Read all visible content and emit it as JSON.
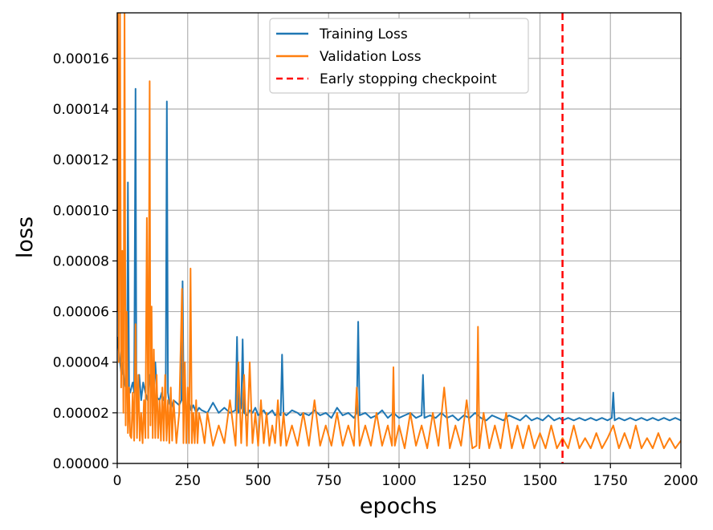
{
  "chart_data": {
    "type": "line",
    "xlabel": "epochs",
    "ylabel": "loss",
    "xlim": [
      0,
      2000
    ],
    "ylim": [
      0,
      0.000178
    ],
    "grid": true,
    "legend_position": "top-center",
    "x_ticks": [
      "0",
      "250",
      "500",
      "750",
      "1000",
      "1250",
      "1500",
      "1750",
      "2000"
    ],
    "y_ticks": [
      "0.00000",
      "0.00002",
      "0.00004",
      "0.00006",
      "0.00008",
      "0.00010",
      "0.00012",
      "0.00014",
      "0.00016"
    ],
    "x_tick_values": [
      0,
      250,
      500,
      750,
      1000,
      1250,
      1500,
      1750,
      2000
    ],
    "y_tick_values": [
      0,
      2e-05,
      4e-05,
      6e-05,
      8e-05,
      0.0001,
      0.00012,
      0.00014,
      0.00016
    ],
    "series": [
      {
        "name": "Training Loss",
        "color": "#1f77b4",
        "style": "solid",
        "x": [
          0,
          5,
          10,
          15,
          20,
          25,
          30,
          35,
          38,
          42,
          46,
          50,
          55,
          60,
          65,
          68,
          72,
          78,
          85,
          92,
          100,
          108,
          115,
          120,
          128,
          135,
          142,
          150,
          158,
          165,
          172,
          176,
          180,
          185,
          192,
          200,
          210,
          220,
          228,
          232,
          236,
          245,
          255,
          262,
          270,
          280,
          290,
          300,
          320,
          340,
          360,
          380,
          400,
          420,
          425,
          430,
          440,
          445,
          450,
          460,
          470,
          480,
          490,
          500,
          510,
          520,
          530,
          540,
          550,
          560,
          570,
          580,
          585,
          590,
          600,
          620,
          640,
          650,
          660,
          680,
          700,
          720,
          740,
          760,
          780,
          800,
          820,
          840,
          850,
          855,
          860,
          880,
          900,
          920,
          940,
          960,
          980,
          1000,
          1020,
          1040,
          1060,
          1080,
          1085,
          1090,
          1110,
          1130,
          1150,
          1170,
          1190,
          1210,
          1230,
          1250,
          1270,
          1290,
          1310,
          1330,
          1350,
          1370,
          1390,
          1410,
          1430,
          1450,
          1470,
          1490,
          1510,
          1530,
          1550,
          1570,
          1580,
          1600,
          1620,
          1640,
          1660,
          1680,
          1700,
          1720,
          1740,
          1755,
          1760,
          1765,
          1780,
          1800,
          1820,
          1840,
          1860,
          1880,
          1900,
          1920,
          1940,
          1960,
          1980,
          2000
        ],
        "y": [
          5e-05,
          4.5e-05,
          4e-05,
          3.5e-05,
          4e-05,
          3.2e-05,
          3e-05,
          3.5e-05,
          0.000111,
          3e-05,
          2.8e-05,
          3e-05,
          3.2e-05,
          2.8e-05,
          0.000148,
          3e-05,
          2.8e-05,
          3.5e-05,
          2.5e-05,
          3.2e-05,
          2.8e-05,
          2.5e-05,
          3.5e-05,
          3e-05,
          2.4e-05,
          4e-05,
          2.6e-05,
          2.5e-05,
          2.8e-05,
          2.5e-05,
          2.6e-05,
          0.000143,
          2.8e-05,
          2.4e-05,
          2.2e-05,
          2.5e-05,
          2.4e-05,
          2.3e-05,
          2.5e-05,
          7.2e-05,
          2.5e-05,
          2.2e-05,
          2.4e-05,
          2.1e-05,
          2.3e-05,
          2e-05,
          2.2e-05,
          2.1e-05,
          2e-05,
          2.4e-05,
          2e-05,
          2.2e-05,
          2e-05,
          2.1e-05,
          5e-05,
          2e-05,
          2.2e-05,
          4.9e-05,
          2e-05,
          1.9e-05,
          2.1e-05,
          2e-05,
          2.2e-05,
          1.9e-05,
          2e-05,
          2.1e-05,
          1.9e-05,
          2e-05,
          2.1e-05,
          1.9e-05,
          2e-05,
          1.9e-05,
          4.3e-05,
          2e-05,
          1.9e-05,
          2.1e-05,
          2e-05,
          1.9e-05,
          2e-05,
          1.9e-05,
          2.1e-05,
          1.9e-05,
          2e-05,
          1.8e-05,
          2.2e-05,
          1.9e-05,
          2e-05,
          1.8e-05,
          2e-05,
          5.6e-05,
          1.9e-05,
          2e-05,
          1.8e-05,
          1.9e-05,
          2.1e-05,
          1.8e-05,
          2e-05,
          1.8e-05,
          1.9e-05,
          2e-05,
          1.8e-05,
          1.9e-05,
          3.5e-05,
          1.8e-05,
          1.9e-05,
          1.8e-05,
          2e-05,
          1.8e-05,
          1.9e-05,
          1.7e-05,
          1.9e-05,
          1.8e-05,
          2e-05,
          1.8e-05,
          1.7e-05,
          1.9e-05,
          1.8e-05,
          1.7e-05,
          1.9e-05,
          1.8e-05,
          1.7e-05,
          1.9e-05,
          1.7e-05,
          1.8e-05,
          1.7e-05,
          1.9e-05,
          1.7e-05,
          1.8e-05,
          1.7e-05,
          1.8e-05,
          1.7e-05,
          1.8e-05,
          1.7e-05,
          1.8e-05,
          1.7e-05,
          1.8e-05,
          1.7e-05,
          1.8e-05,
          2.8e-05,
          1.7e-05,
          1.8e-05,
          1.7e-05,
          1.8e-05,
          1.7e-05,
          1.8e-05,
          1.7e-05,
          1.8e-05,
          1.7e-05,
          1.8e-05,
          1.7e-05,
          1.8e-05,
          1.7e-05
        ]
      },
      {
        "name": "Validation Loss",
        "color": "#ff7f0e",
        "style": "solid",
        "x": [
          0,
          3,
          6,
          10,
          14,
          18,
          22,
          26,
          30,
          34,
          38,
          42,
          46,
          50,
          55,
          60,
          65,
          70,
          75,
          80,
          85,
          90,
          95,
          100,
          105,
          110,
          115,
          118,
          122,
          126,
          130,
          135,
          140,
          145,
          150,
          155,
          160,
          165,
          170,
          175,
          180,
          185,
          190,
          195,
          200,
          210,
          220,
          230,
          235,
          240,
          245,
          250,
          255,
          260,
          265,
          270,
          275,
          280,
          285,
          290,
          300,
          310,
          320,
          340,
          360,
          380,
          400,
          420,
          430,
          440,
          450,
          460,
          470,
          480,
          490,
          500,
          510,
          520,
          530,
          540,
          550,
          560,
          570,
          580,
          590,
          600,
          620,
          640,
          660,
          680,
          700,
          720,
          740,
          760,
          780,
          800,
          820,
          840,
          850,
          860,
          880,
          900,
          920,
          940,
          960,
          975,
          980,
          985,
          1000,
          1020,
          1040,
          1060,
          1080,
          1100,
          1120,
          1140,
          1160,
          1180,
          1200,
          1220,
          1240,
          1260,
          1275,
          1280,
          1285,
          1300,
          1320,
          1340,
          1360,
          1380,
          1400,
          1420,
          1440,
          1460,
          1480,
          1500,
          1520,
          1540,
          1560,
          1580,
          1600,
          1620,
          1640,
          1660,
          1680,
          1700,
          1720,
          1740,
          1760,
          1780,
          1800,
          1820,
          1840,
          1860,
          1880,
          1900,
          1920,
          1940,
          1960,
          1980,
          2000
        ],
        "y": [
          6e-05,
          0.000178,
          4e-05,
          0.000178,
          3e-05,
          8.4e-05,
          2e-05,
          0.000178,
          1.5e-05,
          6e-05,
          1.2e-05,
          3e-05,
          1.1e-05,
          1e-05,
          2.8e-05,
          9e-06,
          5.5e-05,
          1e-05,
          3.5e-05,
          9e-06,
          2e-05,
          8e-06,
          2.5e-05,
          1e-05,
          9.7e-05,
          1e-05,
          0.000151,
          1.5e-05,
          6.2e-05,
          1e-05,
          4.5e-05,
          1e-05,
          3.5e-05,
          1e-05,
          2.5e-05,
          9e-06,
          3e-05,
          9e-06,
          3.5e-05,
          9e-06,
          2.5e-05,
          8e-06,
          3e-05,
          9e-06,
          2.5e-05,
          8e-06,
          2e-05,
          6.9e-05,
          8e-06,
          4e-05,
          8e-06,
          3e-05,
          8e-06,
          7.7e-05,
          8e-06,
          2e-05,
          8e-06,
          2.5e-05,
          8e-06,
          2e-05,
          1.5e-05,
          8e-06,
          2e-05,
          7e-06,
          1.5e-05,
          8e-06,
          2.5e-05,
          7e-06,
          4e-05,
          8e-06,
          3.5e-05,
          7e-06,
          4e-05,
          8e-06,
          2e-05,
          7e-06,
          2.5e-05,
          8e-06,
          2e-05,
          7e-06,
          1.5e-05,
          8e-06,
          2.5e-05,
          7e-06,
          2e-05,
          7e-06,
          1.5e-05,
          7e-06,
          2e-05,
          7e-06,
          2.5e-05,
          7e-06,
          1.5e-05,
          7e-06,
          2e-05,
          7e-06,
          1.5e-05,
          7e-06,
          3e-05,
          7e-06,
          1.5e-05,
          7e-06,
          2e-05,
          7e-06,
          1.5e-05,
          7e-06,
          3.8e-05,
          7e-06,
          1.5e-05,
          6e-06,
          2e-05,
          7e-06,
          1.5e-05,
          6e-06,
          2e-05,
          7e-06,
          3e-05,
          6e-06,
          1.5e-05,
          7e-06,
          2.5e-05,
          6e-06,
          7e-06,
          5.4e-05,
          6e-06,
          2e-05,
          6e-06,
          1.5e-05,
          6e-06,
          2e-05,
          6e-06,
          1.5e-05,
          6e-06,
          1.5e-05,
          6e-06,
          1.2e-05,
          6e-06,
          1.5e-05,
          6e-06,
          1e-05,
          6e-06,
          1.5e-05,
          6e-06,
          1e-05,
          6e-06,
          1.2e-05,
          6e-06,
          1e-05,
          1.5e-05,
          6e-06,
          1.2e-05,
          6e-06,
          1.5e-05,
          6e-06,
          1e-05,
          6e-06,
          1.2e-05,
          6e-06,
          1e-05,
          6e-06,
          9e-06
        ]
      }
    ],
    "vlines": [
      {
        "name": "Early stopping checkpoint",
        "x": 1580,
        "color": "#ff0000",
        "style": "dashed"
      }
    ]
  }
}
